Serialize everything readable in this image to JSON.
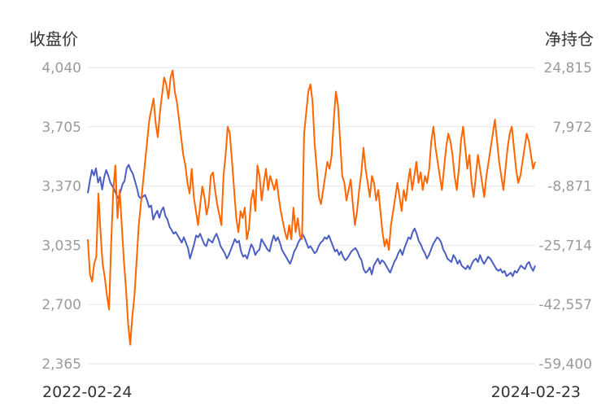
{
  "chart_data": {
    "type": "line",
    "left_axis": {
      "title": "收盘价",
      "ticks": [
        "4,040",
        "3,705",
        "3,370",
        "3,035",
        "2,700",
        "2,365"
      ],
      "range": [
        2365,
        4040
      ]
    },
    "right_axis": {
      "title": "净持仓",
      "ticks": [
        "24,815",
        "7,972",
        "-8,871",
        "-25,714",
        "-42,557",
        "-59,400"
      ],
      "range": [
        -59400,
        24815
      ]
    },
    "x_labels": {
      "start": "2022-02-24",
      "end": "2024-02-23"
    },
    "grid": true,
    "series": [
      {
        "axis": "left",
        "color": "#4a5fc1",
        "values": [
          3330,
          3400,
          3460,
          3430,
          3470,
          3390,
          3420,
          3350,
          3420,
          3460,
          3430,
          3390,
          3370,
          3350,
          3320,
          3300,
          3340,
          3380,
          3400,
          3470,
          3490,
          3460,
          3440,
          3400,
          3360,
          3310,
          3300,
          3310,
          3320,
          3290,
          3250,
          3260,
          3180,
          3210,
          3230,
          3190,
          3230,
          3250,
          3200,
          3180,
          3140,
          3120,
          3100,
          3110,
          3090,
          3070,
          3050,
          3080,
          3050,
          3020,
          2960,
          3000,
          3040,
          3090,
          3080,
          3100,
          3070,
          3040,
          3030,
          3070,
          3060,
          3050,
          3080,
          3100,
          3070,
          3030,
          3010,
          2990,
          2960,
          2980,
          3010,
          3040,
          3070,
          3050,
          3060,
          3000,
          2970,
          2980,
          2960,
          3000,
          3040,
          3020,
          2980,
          3000,
          3010,
          3070,
          3050,
          3030,
          3010,
          3000,
          3050,
          3090,
          3060,
          3080,
          3050,
          3010,
          2990,
          2970,
          2950,
          2930,
          2960,
          3000,
          3020,
          3050,
          3070,
          3100,
          3080,
          3050,
          3020,
          3030,
          3010,
          2990,
          3000,
          3030,
          3050,
          3060,
          3080,
          3070,
          3090,
          3060,
          3030,
          3000,
          3010,
          2980,
          3000,
          2970,
          2950,
          2960,
          2980,
          3000,
          3010,
          3020,
          3000,
          2970,
          2950,
          2900,
          2880,
          2890,
          2910,
          2870,
          2920,
          2940,
          2960,
          2930,
          2950,
          2940,
          2920,
          2900,
          2880,
          2910,
          2940,
          2960,
          2990,
          3010,
          2980,
          3020,
          3050,
          3080,
          3070,
          3110,
          3130,
          3100,
          3060,
          3040,
          3010,
          2990,
          2960,
          2980,
          3010,
          3040,
          3060,
          3080,
          3070,
          3050,
          3010,
          2990,
          2960,
          2950,
          2940,
          2980,
          2960,
          2930,
          2950,
          2920,
          2910,
          2900,
          2920,
          2900,
          2930,
          2950,
          2960,
          2940,
          2980,
          2950,
          2930,
          2950,
          2970,
          2960,
          2940,
          2920,
          2900,
          2890,
          2900,
          2880,
          2890,
          2860,
          2870,
          2880,
          2860,
          2890,
          2880,
          2900,
          2920,
          2910,
          2900,
          2930,
          2940,
          2910,
          2890,
          2920
        ]
      },
      {
        "axis": "right",
        "color": "#ff6600",
        "values": [
          -24000,
          -34000,
          -36000,
          -31000,
          -29000,
          -11000,
          -22000,
          -31000,
          -35000,
          -40000,
          -44000,
          -25000,
          -10000,
          -3000,
          -18000,
          -10000,
          -20000,
          -30000,
          -38000,
          -48000,
          -54000,
          -46000,
          -40000,
          -30000,
          -20000,
          -14000,
          -8000,
          -2000,
          4000,
          10000,
          13000,
          16000,
          9000,
          5000,
          12000,
          17000,
          22000,
          20000,
          16000,
          22000,
          24000,
          18000,
          15000,
          10000,
          5000,
          0,
          -3000,
          -8000,
          -11000,
          -4000,
          -12000,
          -16000,
          -20000,
          -14000,
          -9000,
          -12000,
          -17000,
          -14000,
          -6000,
          -5000,
          -10000,
          -14000,
          -17000,
          -20000,
          -6000,
          0,
          8000,
          6000,
          -2000,
          -10000,
          -18000,
          -22000,
          -16000,
          -18000,
          -15000,
          -24000,
          -21000,
          -13000,
          -10000,
          -16000,
          -3000,
          -6000,
          -13000,
          -8000,
          -4000,
          -10000,
          -6000,
          -8000,
          -10000,
          -7000,
          -12000,
          -16000,
          -19000,
          -22000,
          -24000,
          -20000,
          -24000,
          -15000,
          -22000,
          -18000,
          -23000,
          -24000,
          6000,
          12000,
          18000,
          20000,
          15000,
          3000,
          -4000,
          -12000,
          -14000,
          -10000,
          -6000,
          -2000,
          -4000,
          0,
          10000,
          18000,
          14000,
          4000,
          -6000,
          -8000,
          -13000,
          -10000,
          -7000,
          -14000,
          -20000,
          -16000,
          -10000,
          -5000,
          2000,
          -4000,
          -8000,
          -12000,
          -6000,
          -8000,
          -13000,
          -10000,
          -16000,
          -22000,
          -26000,
          -24000,
          -27000,
          -20000,
          -16000,
          -12000,
          -8000,
          -12000,
          -16000,
          -10000,
          -13000,
          -8000,
          -4000,
          -10000,
          -6000,
          -2000,
          -8000,
          -5000,
          -10000,
          -6000,
          -8000,
          -4000,
          4000,
          8000,
          2000,
          -2000,
          -6000,
          -10000,
          -4000,
          2000,
          6000,
          4000,
          0,
          -6000,
          -10000,
          -4000,
          4000,
          8000,
          2000,
          -4000,
          0,
          -8000,
          -12000,
          -6000,
          0,
          -4000,
          -8000,
          -12000,
          -6000,
          -2000,
          2000,
          6000,
          10000,
          4000,
          -2000,
          -6000,
          -10000,
          -4000,
          2000,
          6000,
          8000,
          2000,
          -4000,
          -8000,
          -6000,
          -2000,
          2000,
          6000,
          4000,
          0,
          -4000,
          -2000
        ]
      }
    ]
  }
}
